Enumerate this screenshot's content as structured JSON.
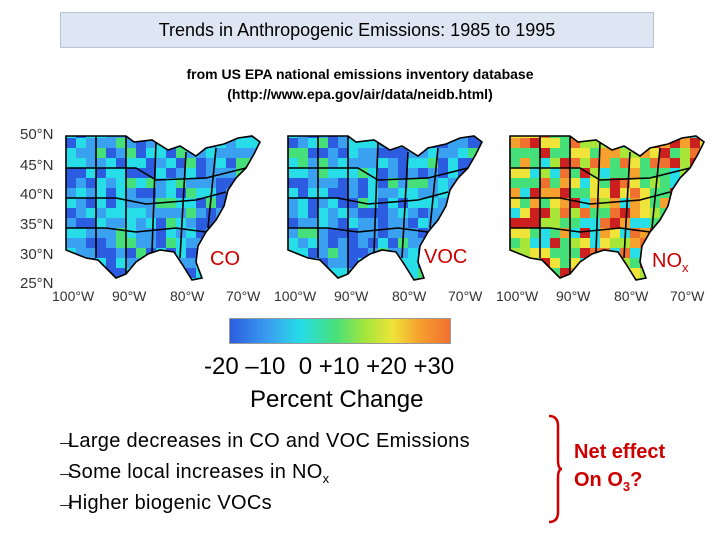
{
  "title": "Trends in Anthropogenic Emissions: 1985 to 1995",
  "subtitle_line1": "from US EPA national emissions inventory database",
  "subtitle_line2": "(http://www.epa.gov/air/data/neidb.html)",
  "latitude_labels": [
    "50°N",
    "45°N",
    "40°N",
    "35°N",
    "30°N",
    "25°N"
  ],
  "longitude_labels": [
    "100°W",
    "90°W",
    "80°W",
    "70°W"
  ],
  "maps": [
    {
      "species": "CO",
      "species_sub": ""
    },
    {
      "species": "VOC",
      "species_sub": ""
    },
    {
      "species": "NO",
      "species_sub": "x"
    }
  ],
  "colorbar": {
    "ticks": "-20 –10  0 +10 +20 +30",
    "label": "Percent Change",
    "colors": [
      "#2c5de0",
      "#3aa0f0",
      "#26dde8",
      "#46e07a",
      "#a8e63a",
      "#f0e33a",
      "#f6a02e",
      "#f07030"
    ]
  },
  "bullets": [
    {
      "arrow": "→",
      "text": "Large decreases in CO and VOC Emissions",
      "sub": ""
    },
    {
      "arrow": "→",
      "text": "Some local increases in NO",
      "sub": "x"
    },
    {
      "arrow": "→",
      "text": "Higher biogenic VOCs",
      "sub": ""
    }
  ],
  "net_effect": {
    "line1": "Net effect",
    "line2_prefix": "On O",
    "line2_sub": "3",
    "line2_suffix": "?"
  },
  "colors": {
    "accent_red": "#cc0000",
    "title_bg": "#dde6f2"
  }
}
